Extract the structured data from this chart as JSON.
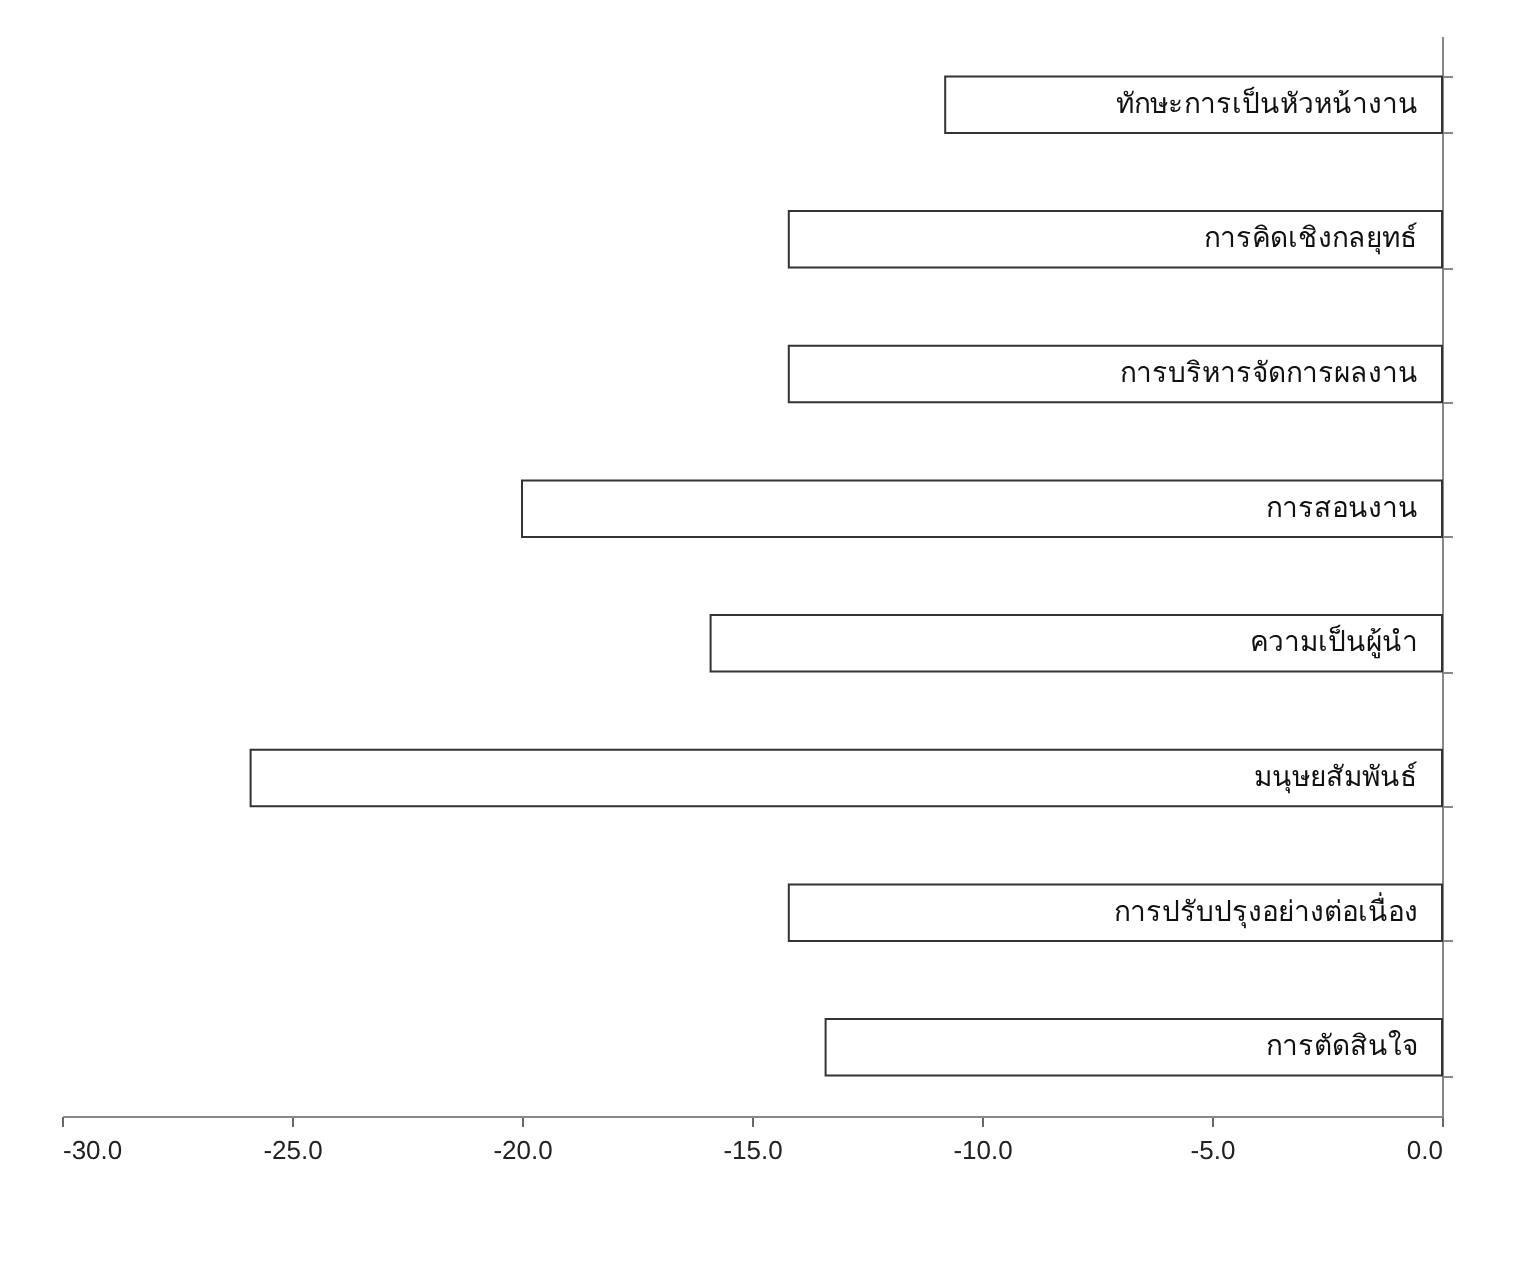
{
  "chart_data": {
    "type": "bar",
    "orientation": "horizontal",
    "categories": [
      "ทักษะการเป็นหัวหน้างาน",
      "การคิดเชิงกลยุทธ์",
      "การบริหารจัดการผลงาน",
      "การสอนงาน",
      "ความเป็นผู้นำ",
      "มนุษยสัมพันธ์",
      "การปรับปรุงอย่างต่อเนื่อง",
      "การตัดสินใจ"
    ],
    "values": [
      -10.8,
      -14.2,
      -14.2,
      -20.0,
      -15.9,
      -25.9,
      -14.2,
      -13.4
    ],
    "color": "#ffffff",
    "xlim": [
      -30,
      0
    ],
    "xticks": [
      {
        "value": -30,
        "label": "-30.0"
      },
      {
        "value": -25,
        "label": "-25.0"
      },
      {
        "value": -20,
        "label": "-20.0"
      },
      {
        "value": -15,
        "label": "-15.0"
      },
      {
        "value": -10,
        "label": "-10.0"
      },
      {
        "value": -5,
        "label": "-5.0"
      },
      {
        "value": 0,
        "label": "0.0"
      }
    ],
    "grid": false
  }
}
